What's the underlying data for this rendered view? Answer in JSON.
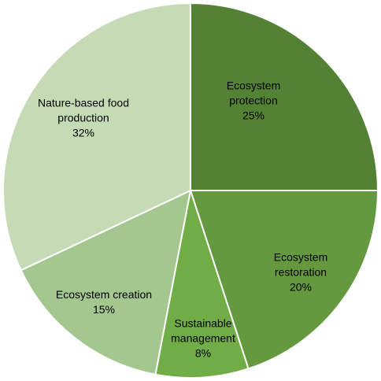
{
  "chart_data": {
    "type": "pie",
    "categories": [
      "Ecosystem protection",
      "Ecosystem restoration",
      "Sustainable management",
      "Ecosystem creation",
      "Nature-based food production"
    ],
    "values": [
      25,
      20,
      8,
      15,
      32
    ],
    "value_labels": [
      "25%",
      "20%",
      "8%",
      "15%",
      "32%"
    ],
    "colors": [
      "#548235",
      "#64993f",
      "#70ad47",
      "#a4c68f",
      "#c5dbb6"
    ]
  }
}
